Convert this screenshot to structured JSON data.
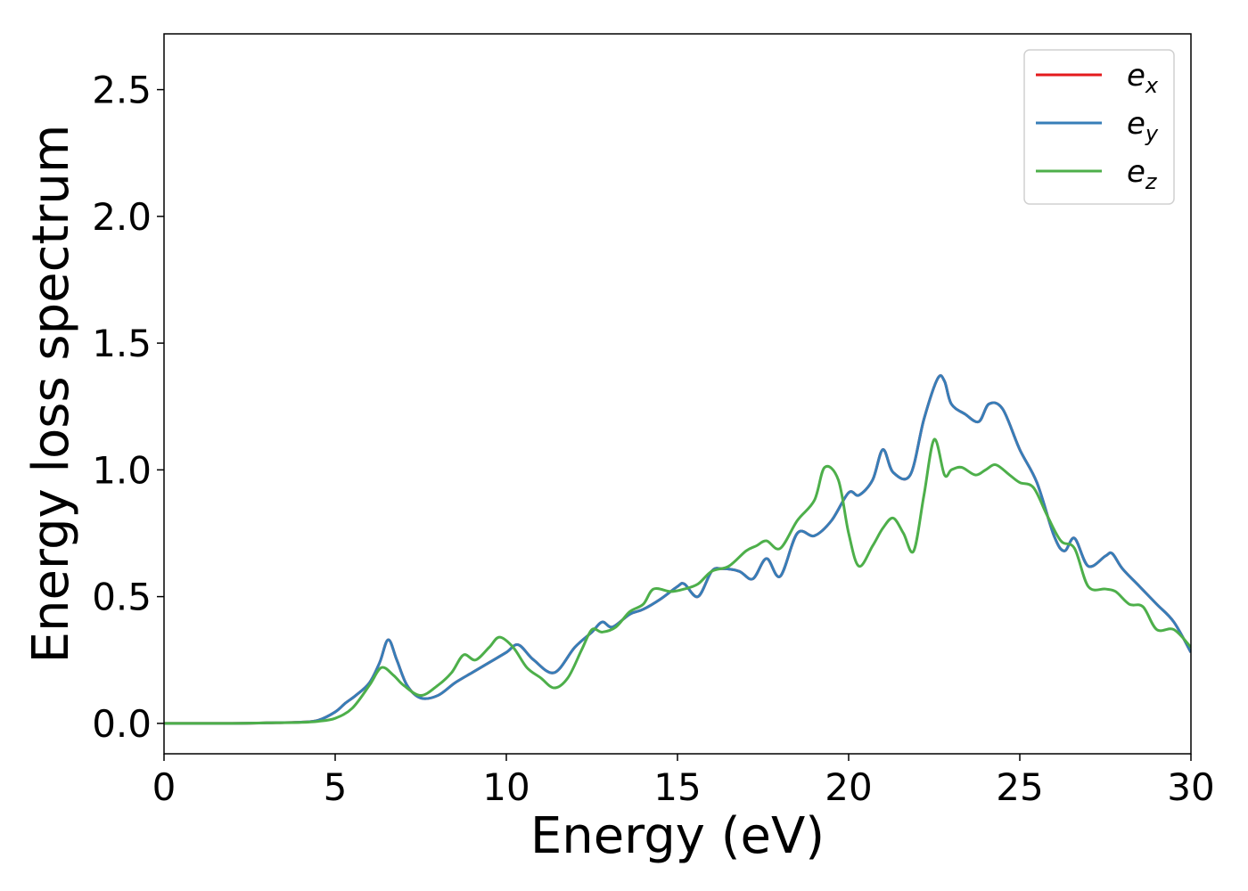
{
  "chart_data": {
    "type": "line",
    "xlabel": "Energy (eV)",
    "ylabel": "Energy loss spectrum",
    "xlim": [
      0,
      30
    ],
    "ylim": [
      -0.12,
      2.72
    ],
    "xticks": [
      0,
      5,
      10,
      15,
      20,
      25,
      30
    ],
    "xtick_labels": [
      "0",
      "5",
      "10",
      "15",
      "20",
      "25",
      "30"
    ],
    "yticks": [
      0.0,
      0.5,
      1.0,
      1.5,
      2.0,
      2.5
    ],
    "ytick_labels": [
      "0.0",
      "0.5",
      "1.0",
      "1.5",
      "2.0",
      "2.5"
    ],
    "grid": false,
    "legend_position": "top-right",
    "series": [
      {
        "name": "e_x",
        "label_base": "e",
        "label_sub": "x",
        "color": "#e41a1c",
        "x": [
          0,
          2,
          3,
          4,
          4.5,
          5,
          5.3,
          5.6,
          6,
          6.3,
          6.55,
          6.8,
          7.1,
          7.5,
          8,
          8.5,
          9,
          9.5,
          10,
          10.35,
          10.8,
          11.4,
          12,
          12.5,
          12.8,
          13.1,
          13.6,
          14,
          14.5,
          15,
          15.2,
          15.6,
          16,
          16.3,
          16.8,
          17.2,
          17.6,
          18,
          18.5,
          19,
          19.5,
          20,
          20.3,
          20.7,
          21,
          21.3,
          21.8,
          22.2,
          22.6,
          22.8,
          23,
          23.4,
          23.8,
          24.1,
          24.5,
          25,
          25.5,
          26,
          26.3,
          26.6,
          27,
          27.5,
          27.7,
          28,
          28.5,
          29,
          29.5,
          30
        ],
        "y": [
          0,
          0,
          0.002,
          0.005,
          0.012,
          0.045,
          0.08,
          0.11,
          0.16,
          0.24,
          0.33,
          0.25,
          0.15,
          0.1,
          0.11,
          0.16,
          0.2,
          0.24,
          0.28,
          0.31,
          0.25,
          0.2,
          0.3,
          0.36,
          0.4,
          0.38,
          0.43,
          0.45,
          0.49,
          0.54,
          0.55,
          0.5,
          0.6,
          0.61,
          0.6,
          0.57,
          0.65,
          0.58,
          0.75,
          0.74,
          0.8,
          0.91,
          0.9,
          0.96,
          1.08,
          0.99,
          0.98,
          1.2,
          1.36,
          1.35,
          1.26,
          1.22,
          1.19,
          1.26,
          1.24,
          1.08,
          0.95,
          0.74,
          0.68,
          0.73,
          0.62,
          0.66,
          0.67,
          0.61,
          0.54,
          0.47,
          0.4,
          0.28
        ]
      },
      {
        "name": "e_y",
        "label_base": "e",
        "label_sub": "y",
        "color": "#377eb8",
        "x": [
          0,
          2,
          3,
          4,
          4.5,
          5,
          5.3,
          5.6,
          6,
          6.3,
          6.55,
          6.8,
          7.1,
          7.5,
          8,
          8.5,
          9,
          9.5,
          10,
          10.35,
          10.8,
          11.4,
          12,
          12.5,
          12.8,
          13.1,
          13.6,
          14,
          14.5,
          15,
          15.2,
          15.6,
          16,
          16.3,
          16.8,
          17.2,
          17.6,
          18,
          18.5,
          19,
          19.5,
          20,
          20.3,
          20.7,
          21,
          21.3,
          21.8,
          22.2,
          22.6,
          22.8,
          23,
          23.4,
          23.8,
          24.1,
          24.5,
          25,
          25.5,
          26,
          26.3,
          26.6,
          27,
          27.5,
          27.7,
          28,
          28.5,
          29,
          29.5,
          30
        ],
        "y": [
          0,
          0,
          0.002,
          0.005,
          0.012,
          0.045,
          0.08,
          0.11,
          0.16,
          0.24,
          0.33,
          0.25,
          0.15,
          0.1,
          0.11,
          0.16,
          0.2,
          0.24,
          0.28,
          0.31,
          0.25,
          0.2,
          0.3,
          0.36,
          0.4,
          0.38,
          0.43,
          0.45,
          0.49,
          0.54,
          0.55,
          0.5,
          0.6,
          0.61,
          0.6,
          0.57,
          0.65,
          0.58,
          0.75,
          0.74,
          0.8,
          0.91,
          0.9,
          0.96,
          1.08,
          0.99,
          0.98,
          1.2,
          1.36,
          1.35,
          1.26,
          1.22,
          1.19,
          1.26,
          1.24,
          1.08,
          0.95,
          0.74,
          0.68,
          0.73,
          0.62,
          0.66,
          0.67,
          0.61,
          0.54,
          0.47,
          0.4,
          0.28
        ]
      },
      {
        "name": "e_z",
        "label_base": "e",
        "label_sub": "z",
        "color": "#4daf4a",
        "x": [
          0,
          2,
          3,
          4,
          4.5,
          5,
          5.5,
          6,
          6.35,
          6.7,
          7,
          7.5,
          8,
          8.4,
          8.75,
          9.1,
          9.5,
          9.8,
          10.2,
          10.6,
          11,
          11.4,
          11.8,
          12.2,
          12.5,
          12.8,
          13.2,
          13.6,
          14,
          14.3,
          14.8,
          15.2,
          15.6,
          16,
          16.5,
          17,
          17.3,
          17.6,
          18,
          18.5,
          19,
          19.3,
          19.7,
          20,
          20.3,
          20.7,
          21,
          21.3,
          21.6,
          21.9,
          22.2,
          22.5,
          22.8,
          23,
          23.3,
          23.7,
          24,
          24.3,
          24.7,
          25,
          25.4,
          25.8,
          26.2,
          26.6,
          27,
          27.5,
          27.8,
          28.2,
          28.6,
          29,
          29.5,
          30
        ],
        "y": [
          0,
          0,
          0.002,
          0.004,
          0.008,
          0.02,
          0.06,
          0.15,
          0.22,
          0.19,
          0.15,
          0.11,
          0.15,
          0.2,
          0.27,
          0.25,
          0.3,
          0.34,
          0.3,
          0.22,
          0.18,
          0.14,
          0.18,
          0.29,
          0.37,
          0.36,
          0.38,
          0.44,
          0.47,
          0.53,
          0.52,
          0.53,
          0.55,
          0.6,
          0.62,
          0.68,
          0.7,
          0.72,
          0.69,
          0.8,
          0.88,
          1.01,
          0.96,
          0.75,
          0.62,
          0.7,
          0.77,
          0.81,
          0.75,
          0.68,
          0.9,
          1.12,
          0.98,
          1.0,
          1.01,
          0.98,
          1.0,
          1.02,
          0.98,
          0.95,
          0.93,
          0.82,
          0.72,
          0.69,
          0.54,
          0.53,
          0.52,
          0.47,
          0.46,
          0.37,
          0.37,
          0.3
        ]
      }
    ]
  }
}
